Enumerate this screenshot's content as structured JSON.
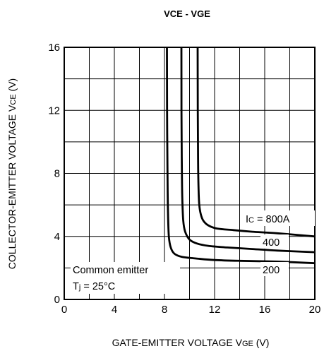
{
  "chart_data": {
    "type": "line",
    "title_main": "VCE",
    "title_sep": " - ",
    "title_second": "VGE",
    "xlabel_prefix": "GATE-EMITTER VOLTAGE  V",
    "xlabel_sub": "GE",
    "xlabel_suffix": " (V)",
    "ylabel_prefix": "COLLECTOR-EMITTER VOLTAGE  V",
    "ylabel_sub": "CE",
    "ylabel_suffix": " (V)",
    "xlim": [
      0,
      20
    ],
    "ylim": [
      0,
      16
    ],
    "xticks": [
      0,
      4,
      8,
      12,
      16,
      20
    ],
    "yticks": [
      0,
      4,
      8,
      12,
      16
    ],
    "grid": true,
    "series": [
      {
        "name": "800A",
        "label_text": "800A",
        "x": [
          10.65,
          10.66,
          10.68,
          10.72,
          10.78,
          10.9,
          11.1,
          11.5,
          12.2,
          13.5,
          15,
          17,
          20
        ],
        "y": [
          16,
          12,
          9,
          7,
          6,
          5.4,
          5.0,
          4.7,
          4.5,
          4.4,
          4.3,
          4.2,
          4.0
        ]
      },
      {
        "name": "400",
        "label_text": "400",
        "x": [
          9.35,
          9.36,
          9.38,
          9.42,
          9.5,
          9.65,
          10.0,
          10.6,
          11.5,
          13,
          15,
          17,
          20
        ],
        "y": [
          16,
          12,
          9,
          6.5,
          5.0,
          4.3,
          3.8,
          3.55,
          3.4,
          3.3,
          3.2,
          3.1,
          3.0
        ]
      },
      {
        "name": "200",
        "label_text": "200",
        "x": [
          8.2,
          8.21,
          8.24,
          8.28,
          8.35,
          8.5,
          8.8,
          9.4,
          10.5,
          12,
          14,
          17,
          20
        ],
        "y": [
          16,
          12,
          8,
          5.5,
          4.0,
          3.3,
          2.9,
          2.7,
          2.6,
          2.5,
          2.45,
          2.4,
          2.3
        ]
      }
    ],
    "ic_label_prefix": "I",
    "ic_label_sub": "C",
    "ic_label_eq": " = ",
    "annotation_line1": "Common emitter",
    "annotation_tj_prefix": "T",
    "annotation_tj_sub": "j",
    "annotation_tj_value": " = 25°C"
  }
}
